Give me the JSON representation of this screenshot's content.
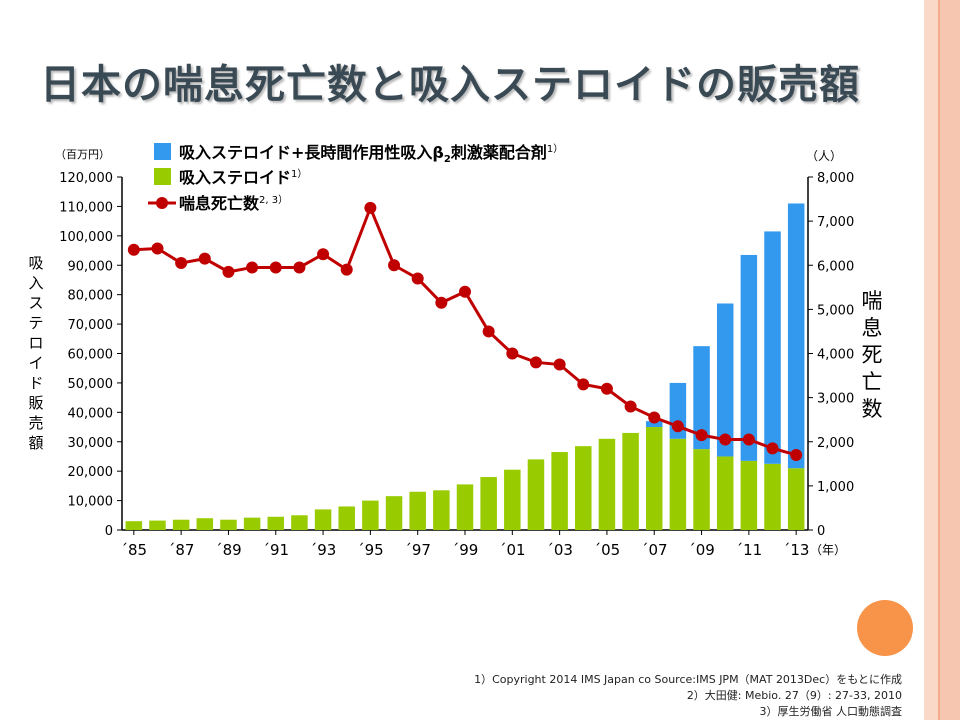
{
  "slide": {
    "title": "日本の喘息死亡数と吸入ステロイドの販売額",
    "footnotes": [
      "1）Copyright 2014 IMS Japan co Source:IMS JPM（MAT 2013Dec）をもとに作成",
      "2）大田健: Mebio. 27（9）: 27-33, 2010",
      "3）厚生労働省 人口動態調査"
    ],
    "colors": {
      "accent_stripe": "#f7c6b0",
      "accent_dot": "#f7944a"
    }
  },
  "chart_data": {
    "type": "bar",
    "stacked": true,
    "categories": [
      "85",
      "86",
      "87",
      "88",
      "89",
      "90",
      "91",
      "92",
      "93",
      "94",
      "95",
      "96",
      "97",
      "98",
      "99",
      "00",
      "01",
      "02",
      "03",
      "04",
      "05",
      "06",
      "07",
      "08",
      "09",
      "10",
      "11",
      "12",
      "13"
    ],
    "x_tick_labels": [
      "´85",
      "´87",
      "´89",
      "´91",
      "´93",
      "´95",
      "´97",
      "´99",
      "´01",
      "´03",
      "´05",
      "´07",
      "´09",
      "´11",
      "´13"
    ],
    "x_unit": "（年）",
    "left_axis": {
      "unit": "（百万円）",
      "label": "吸入ステロイド販売額",
      "ylim": [
        0,
        120000
      ],
      "ticks": [
        "0",
        "10,000",
        "20,000",
        "30,000",
        "40,000",
        "50,000",
        "60,000",
        "70,000",
        "80,000",
        "90,000",
        "100,000",
        "110,000",
        "120,000"
      ]
    },
    "right_axis": {
      "unit": "（人）",
      "label": "喘息死亡数",
      "ylim": [
        0,
        8000
      ],
      "ticks": [
        "0",
        "1,000",
        "2,000",
        "3,000",
        "4,000",
        "5,000",
        "6,000",
        "7,000",
        "8,000"
      ]
    },
    "series": [
      {
        "name": "吸入ステロイド",
        "superscript": "1）",
        "kind": "bar",
        "axis": "left",
        "color": "#99cc00",
        "values": [
          3000,
          3200,
          3500,
          4000,
          3500,
          4200,
          4500,
          5000,
          7000,
          8000,
          10000,
          11500,
          13000,
          13500,
          15500,
          18000,
          20500,
          24000,
          26500,
          28500,
          31000,
          33000,
          35000,
          31000,
          27500,
          25000,
          23500,
          22500,
          21000
        ]
      },
      {
        "name": "吸入ステロイド+長時間作用性吸入β",
        "name_sub": "2",
        "name_rest": "刺激薬配合剤",
        "superscript": "1）",
        "kind": "bar",
        "axis": "left",
        "color": "#3399ee",
        "values": [
          0,
          0,
          0,
          0,
          0,
          0,
          0,
          0,
          0,
          0,
          0,
          0,
          0,
          0,
          0,
          0,
          0,
          0,
          0,
          0,
          0,
          0,
          2000,
          19000,
          35000,
          52000,
          70000,
          79000,
          90000
        ]
      },
      {
        "name": "喘息死亡数",
        "superscript": "2, 3）",
        "kind": "line",
        "axis": "right",
        "color": "#c00000",
        "values": [
          6350,
          6380,
          6050,
          6150,
          5850,
          5950,
          5950,
          5950,
          6250,
          5900,
          7300,
          6000,
          5700,
          5150,
          5400,
          4500,
          4000,
          3800,
          3750,
          3300,
          3200,
          2800,
          2550,
          2350,
          2150,
          2050,
          2050,
          1850,
          1700
        ]
      }
    ]
  }
}
